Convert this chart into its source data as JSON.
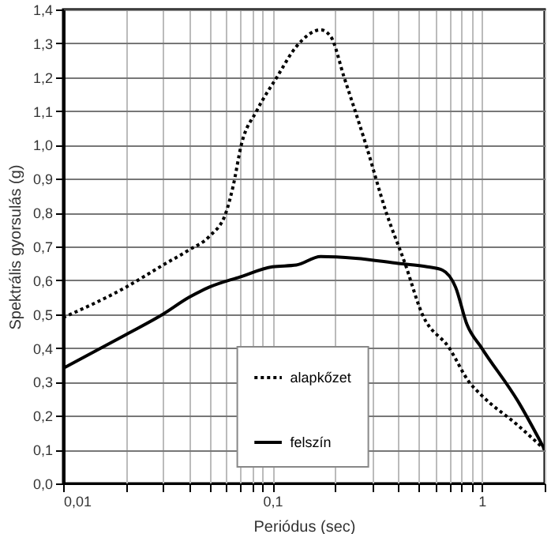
{
  "chart_data": {
    "type": "line",
    "xlabel": "Periódus (sec)",
    "ylabel": "Spektrális gyorsulás (g)",
    "log": "x",
    "grid": true,
    "legend": "bottom",
    "marker": "none",
    "xlim": [
      0.01,
      2
    ],
    "xticks": [
      {
        "value": 0.01,
        "label": "0,01"
      },
      {
        "value": 0.02,
        "label": null
      },
      {
        "value": 0.03,
        "label": null
      },
      {
        "value": 0.04,
        "label": null
      },
      {
        "value": 0.05,
        "label": null
      },
      {
        "value": 0.06,
        "label": null
      },
      {
        "value": 0.07,
        "label": null
      },
      {
        "value": 0.08,
        "label": null
      },
      {
        "value": 0.09,
        "label": null
      },
      {
        "value": 0.1,
        "label": "0,1"
      },
      {
        "value": 0.2,
        "label": null
      },
      {
        "value": 0.3,
        "label": null
      },
      {
        "value": 0.4,
        "label": null
      },
      {
        "value": 0.5,
        "label": null
      },
      {
        "value": 0.6,
        "label": null
      },
      {
        "value": 0.7,
        "label": null
      },
      {
        "value": 0.8,
        "label": null
      },
      {
        "value": 0.9,
        "label": null
      },
      {
        "value": 1,
        "label": "1"
      },
      {
        "value": 2,
        "label": null
      }
    ],
    "ylim": [
      0,
      1.4
    ],
    "yticks": [
      {
        "value": 0,
        "label": "0,0"
      },
      {
        "value": 0.1,
        "label": "0,1"
      },
      {
        "value": 0.2,
        "label": "0,2"
      },
      {
        "value": 0.3,
        "label": "0,3"
      },
      {
        "value": 0.4,
        "label": "0,4"
      },
      {
        "value": 0.5,
        "label": "0,5"
      },
      {
        "value": 0.6,
        "label": "0,6"
      },
      {
        "value": 0.7,
        "label": "0,7"
      },
      {
        "value": 0.8,
        "label": "0,8"
      },
      {
        "value": 0.9,
        "label": "0,9"
      },
      {
        "value": 1,
        "label": "1,0"
      },
      {
        "value": 1.1,
        "label": "1,1"
      },
      {
        "value": 1.2,
        "label": "1,2"
      },
      {
        "value": 1.3,
        "label": "1,3"
      },
      {
        "value": 1.4,
        "label": "1,4"
      }
    ],
    "series": [
      {
        "name": "alapkőzet",
        "color": "#000000",
        "line_style": "dotted",
        "x": [
          0.01,
          0.02,
          0.03,
          0.04,
          0.05,
          0.06,
          0.065,
          0.071,
          0.084,
          0.105,
          0.13,
          0.17,
          0.19,
          0.22,
          0.28,
          0.35,
          0.43,
          0.52,
          0.7,
          0.87,
          1,
          1.5,
          2
        ],
        "values": [
          0.49,
          0.58,
          0.645,
          0.69,
          0.73,
          0.8,
          0.88,
          1.0,
          1.1,
          1.2,
          1.29,
          1.34,
          1.32,
          1.2,
          1.0,
          0.8,
          0.65,
          0.5,
          0.4,
          0.3,
          0.26,
          0.17,
          0.1
        ]
      },
      {
        "name": "felszín",
        "color": "#000000",
        "line_style": "solid",
        "x": [
          0.01,
          0.02,
          0.03,
          0.04,
          0.05,
          0.07,
          0.1,
          0.13,
          0.17,
          0.25,
          0.4,
          0.55,
          0.65,
          0.75,
          0.85,
          1,
          1.5,
          2
        ],
        "values": [
          0.34,
          0.44,
          0.5,
          0.55,
          0.58,
          0.61,
          0.64,
          0.645,
          0.67,
          0.665,
          0.65,
          0.64,
          0.63,
          0.58,
          0.47,
          0.4,
          0.24,
          0.1
        ]
      }
    ]
  }
}
